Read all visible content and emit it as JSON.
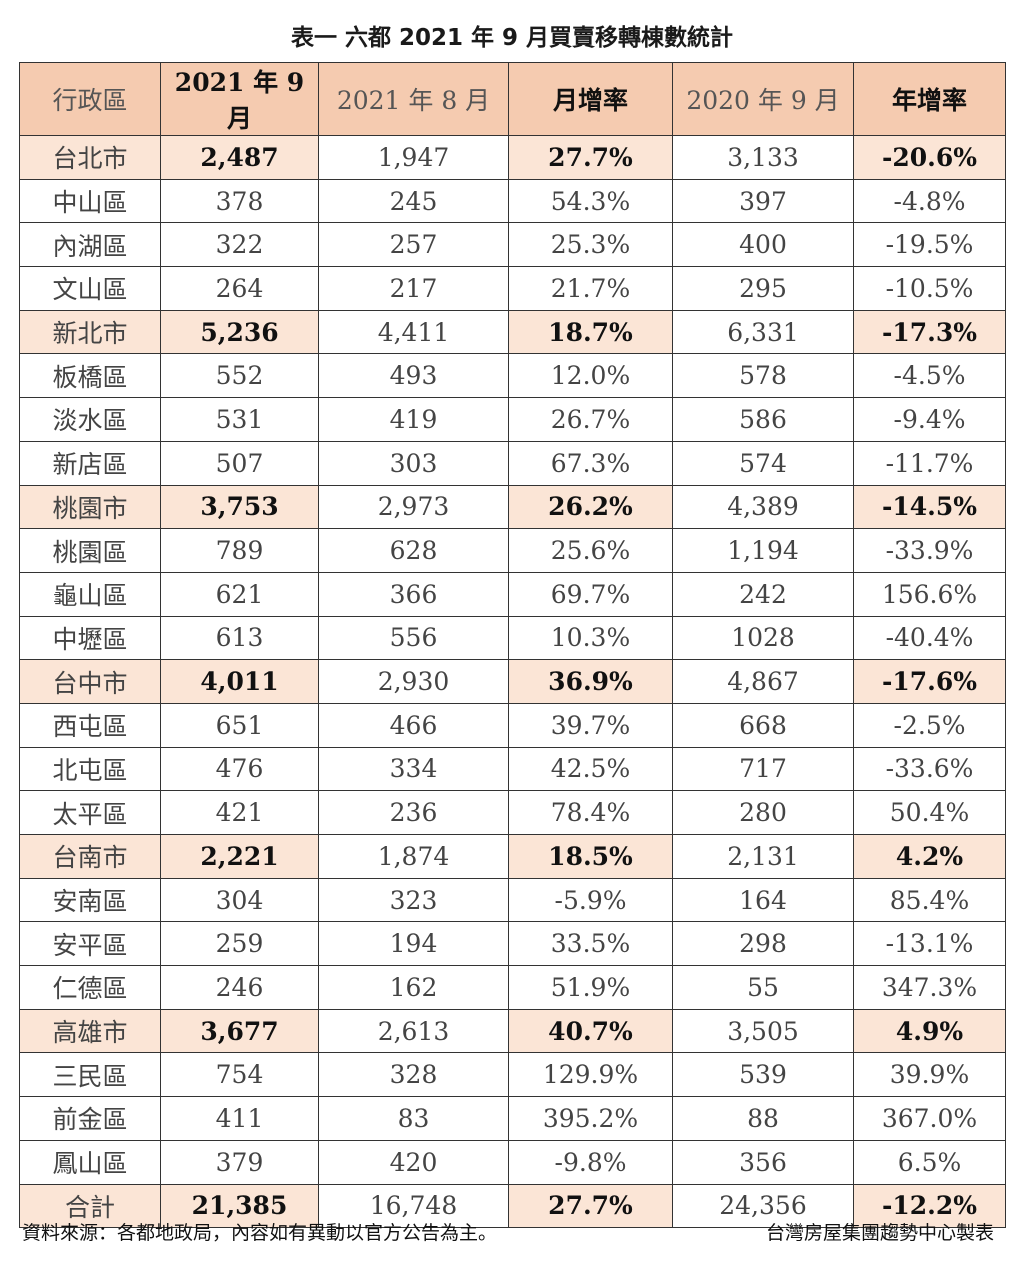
{
  "title": "表一  六都 2021 年 9 月買賣移轉棟數統計",
  "headers": [
    "行政區",
    "2021 年 9 月",
    "2021 年 8 月",
    "月增率",
    "2020 年 9 月",
    "年增率"
  ],
  "rows": [
    {
      "type": "city",
      "cells": [
        "台北市",
        "2,487",
        "1,947",
        "27.7%",
        "3,133",
        "-20.6%"
      ]
    },
    {
      "type": "district",
      "cells": [
        "中山區",
        "378",
        "245",
        "54.3%",
        "397",
        "-4.8%"
      ]
    },
    {
      "type": "district",
      "cells": [
        "內湖區",
        "322",
        "257",
        "25.3%",
        "400",
        "-19.5%"
      ]
    },
    {
      "type": "district",
      "cells": [
        "文山區",
        "264",
        "217",
        "21.7%",
        "295",
        "-10.5%"
      ]
    },
    {
      "type": "city",
      "cells": [
        "新北市",
        "5,236",
        "4,411",
        "18.7%",
        "6,331",
        "-17.3%"
      ]
    },
    {
      "type": "district",
      "cells": [
        "板橋區",
        "552",
        "493",
        "12.0%",
        "578",
        "-4.5%"
      ]
    },
    {
      "type": "district",
      "cells": [
        "淡水區",
        "531",
        "419",
        "26.7%",
        "586",
        "-9.4%"
      ]
    },
    {
      "type": "district",
      "cells": [
        "新店區",
        "507",
        "303",
        "67.3%",
        "574",
        "-11.7%"
      ]
    },
    {
      "type": "city",
      "cells": [
        "桃園市",
        "3,753",
        "2,973",
        "26.2%",
        "4,389",
        "-14.5%"
      ]
    },
    {
      "type": "district",
      "cells": [
        "桃園區",
        "789",
        "628",
        "25.6%",
        "1,194",
        "-33.9%"
      ]
    },
    {
      "type": "district",
      "cells": [
        "龜山區",
        "621",
        "366",
        "69.7%",
        "242",
        "156.6%"
      ]
    },
    {
      "type": "district",
      "cells": [
        "中壢區",
        "613",
        "556",
        "10.3%",
        "1028",
        "-40.4%"
      ]
    },
    {
      "type": "city",
      "cells": [
        "台中市",
        "4,011",
        "2,930",
        "36.9%",
        "4,867",
        "-17.6%"
      ]
    },
    {
      "type": "district",
      "cells": [
        "西屯區",
        "651",
        "466",
        "39.7%",
        "668",
        "-2.5%"
      ]
    },
    {
      "type": "district",
      "cells": [
        "北屯區",
        "476",
        "334",
        "42.5%",
        "717",
        "-33.6%"
      ]
    },
    {
      "type": "district",
      "cells": [
        "太平區",
        "421",
        "236",
        "78.4%",
        "280",
        "50.4%"
      ]
    },
    {
      "type": "city",
      "cells": [
        "台南市",
        "2,221",
        "1,874",
        "18.5%",
        "2,131",
        "4.2%"
      ]
    },
    {
      "type": "district",
      "cells": [
        "安南區",
        "304",
        "323",
        "-5.9%",
        "164",
        "85.4%"
      ]
    },
    {
      "type": "district",
      "cells": [
        "安平區",
        "259",
        "194",
        "33.5%",
        "298",
        "-13.1%"
      ]
    },
    {
      "type": "district",
      "cells": [
        "仁德區",
        "246",
        "162",
        "51.9%",
        "55",
        "347.3%"
      ]
    },
    {
      "type": "city",
      "cells": [
        "高雄市",
        "3,677",
        "2,613",
        "40.7%",
        "3,505",
        "4.9%"
      ]
    },
    {
      "type": "district",
      "cells": [
        "三民區",
        "754",
        "328",
        "129.9%",
        "539",
        "39.9%"
      ]
    },
    {
      "type": "district",
      "cells": [
        "前金區",
        "411",
        "83",
        "395.2%",
        "88",
        "367.0%"
      ]
    },
    {
      "type": "district",
      "cells": [
        "鳳山區",
        "379",
        "420",
        "-9.8%",
        "356",
        "6.5%"
      ]
    },
    {
      "type": "total",
      "cells": [
        "合計",
        "21,385",
        "16,748",
        "27.7%",
        "24,356",
        "-12.2%"
      ]
    }
  ],
  "footer": {
    "source": "資料來源：各都地政局，內容如有異動以官方公告為主。",
    "credit": "台灣房屋集團趨勢中心製表"
  }
}
